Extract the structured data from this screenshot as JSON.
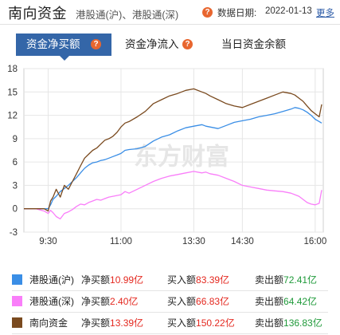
{
  "header": {
    "title": "南向资金",
    "subtitle": "港股通(沪)、港股通(深)",
    "date_label": "数据日期:",
    "date_value": "2022-01-13",
    "more_label": "更多",
    "help_glyph": "?"
  },
  "tabs": [
    {
      "label": "资金净买额",
      "active": true
    },
    {
      "label": "资金净流入",
      "active": false
    },
    {
      "label": "当日资金余额",
      "active": false
    }
  ],
  "watermark": "东方财富",
  "colors": {
    "hgt": "#3a8ee6",
    "sgt": "#f97ef9",
    "total": "#7a4a1f",
    "accent": "#3466a8",
    "help": "#e8662f",
    "up": "#e4281f",
    "down": "#1f9a3a"
  },
  "legend": [
    {
      "name": "港股通(沪)",
      "net_label": "净买额",
      "net_value": "10.99亿",
      "buy_label": "买入额",
      "buy_value": "83.39亿",
      "sell_label": "卖出额",
      "sell_value": "72.41亿",
      "color": "#3a8ee6"
    },
    {
      "name": "港股通(深)",
      "net_label": "净买额",
      "net_value": "2.40亿",
      "buy_label": "买入额",
      "buy_value": "66.83亿",
      "sell_label": "卖出额",
      "sell_value": "64.42亿",
      "color": "#f97ef9"
    },
    {
      "name": "南向资金",
      "net_label": "净买额",
      "net_value": "13.39亿",
      "buy_label": "买入额",
      "buy_value": "150.22亿",
      "sell_label": "卖出额",
      "sell_value": "136.83亿",
      "color": "#7a4a1f"
    }
  ],
  "chart_data": {
    "type": "line",
    "title": "",
    "xlabel": "",
    "ylabel": "",
    "ylim": [
      -3,
      18
    ],
    "yticks": [
      -3,
      0,
      3,
      6,
      9,
      12,
      15,
      18
    ],
    "x_tick_labels": [
      "9:30",
      "11:00",
      "13:30",
      "14:30",
      "16:00"
    ],
    "x_tick_minutes": [
      60,
      150,
      240,
      300,
      390
    ],
    "x_range_minutes": [
      30,
      400
    ],
    "grid": true,
    "x_unit": "minutes after 9:00 on the time-compressed trading axis",
    "series": [
      {
        "name": "港股通(沪)",
        "color": "#3a8ee6",
        "x": [
          30,
          45,
          55,
          60,
          63,
          66,
          70,
          75,
          80,
          85,
          90,
          95,
          100,
          105,
          110,
          115,
          120,
          125,
          130,
          135,
          140,
          145,
          150,
          155,
          160,
          170,
          180,
          190,
          200,
          210,
          220,
          230,
          240,
          250,
          255,
          260,
          270,
          280,
          290,
          300,
          310,
          320,
          330,
          340,
          350,
          360,
          365,
          370,
          375,
          380,
          385,
          390,
          395,
          398
        ],
        "y": [
          0,
          0,
          0,
          0,
          0.5,
          1.2,
          1.6,
          2.2,
          2.6,
          3.0,
          3.5,
          4.0,
          4.6,
          5.2,
          5.6,
          5.9,
          6.0,
          6.2,
          6.3,
          6.5,
          6.7,
          6.9,
          7.1,
          7.5,
          7.6,
          7.7,
          8.0,
          8.7,
          9.2,
          9.5,
          10.0,
          10.4,
          10.6,
          10.8,
          10.6,
          10.5,
          10.3,
          10.7,
          11.1,
          11.3,
          11.5,
          11.8,
          12.0,
          12.2,
          12.5,
          12.8,
          13.0,
          12.9,
          12.7,
          12.4,
          12.0,
          11.5,
          11.2,
          11.0
        ]
      },
      {
        "name": "港股通(深)",
        "color": "#f97ef9",
        "x": [
          30,
          45,
          55,
          60,
          63,
          66,
          70,
          75,
          80,
          85,
          90,
          95,
          100,
          105,
          110,
          115,
          120,
          125,
          130,
          135,
          140,
          145,
          150,
          155,
          160,
          170,
          180,
          190,
          200,
          210,
          220,
          230,
          240,
          250,
          255,
          260,
          270,
          280,
          290,
          300,
          310,
          320,
          330,
          340,
          350,
          360,
          365,
          370,
          375,
          380,
          385,
          390,
          395,
          398
        ],
        "y": [
          0,
          0,
          -0.3,
          -0.6,
          -0.2,
          -0.5,
          -1.0,
          -1.3,
          -0.6,
          -0.4,
          -0.1,
          0.3,
          0.6,
          0.5,
          0.8,
          1.0,
          1.2,
          1.1,
          1.3,
          1.5,
          1.6,
          1.7,
          1.8,
          2.2,
          2.0,
          2.5,
          3.0,
          3.5,
          3.9,
          4.2,
          4.4,
          4.6,
          4.8,
          4.6,
          4.7,
          4.5,
          4.3,
          3.9,
          3.5,
          3.0,
          2.8,
          2.6,
          2.4,
          2.3,
          2.2,
          2.0,
          1.8,
          1.6,
          1.2,
          0.8,
          0.6,
          0.5,
          0.7,
          2.4
        ]
      },
      {
        "name": "南向资金",
        "color": "#7a4a1f",
        "x": [
          30,
          45,
          55,
          60,
          63,
          66,
          70,
          75,
          80,
          85,
          90,
          95,
          100,
          105,
          110,
          115,
          120,
          125,
          130,
          135,
          140,
          145,
          150,
          155,
          160,
          170,
          180,
          190,
          200,
          210,
          220,
          230,
          240,
          250,
          255,
          260,
          270,
          280,
          290,
          300,
          310,
          320,
          330,
          340,
          350,
          360,
          365,
          370,
          375,
          380,
          385,
          390,
          395,
          398
        ],
        "y": [
          0,
          0,
          0,
          -0.3,
          1.0,
          1.5,
          2.5,
          1.5,
          3.0,
          2.5,
          3.5,
          4.5,
          5.5,
          6.5,
          7.0,
          7.5,
          7.8,
          8.3,
          8.8,
          9.0,
          9.3,
          9.8,
          10.5,
          11.0,
          11.2,
          11.8,
          12.5,
          13.5,
          14.0,
          14.5,
          14.8,
          15.2,
          15.4,
          15.0,
          14.8,
          14.5,
          14.0,
          13.5,
          13.2,
          13.0,
          13.4,
          13.8,
          14.2,
          14.6,
          15.0,
          14.8,
          14.6,
          14.2,
          13.8,
          13.2,
          12.6,
          12.2,
          11.8,
          13.4
        ]
      }
    ]
  }
}
